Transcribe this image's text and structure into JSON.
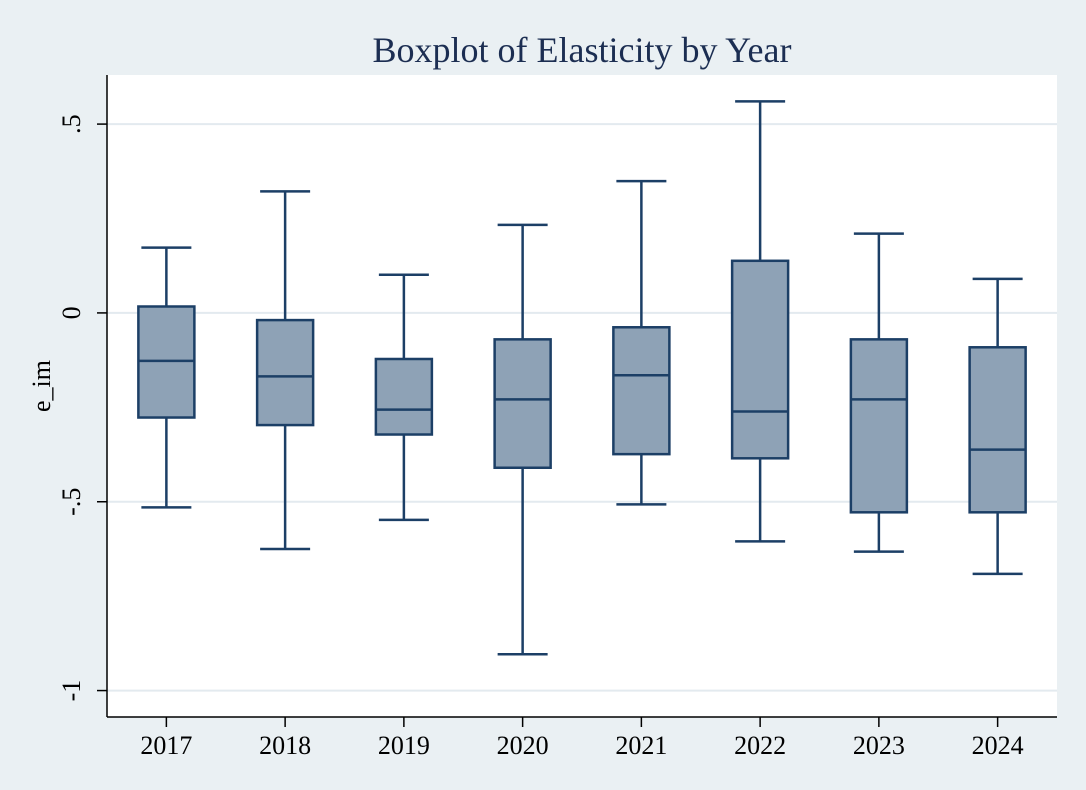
{
  "chart_data": {
    "type": "boxplot",
    "title": "Boxplot of Elasticity by Year",
    "xlabel": "",
    "ylabel": "e_im",
    "ylim": [
      -1.07,
      0.63
    ],
    "yticks": [
      {
        "value": 0.5,
        "label": ".5"
      },
      {
        "value": 0,
        "label": "0"
      },
      {
        "value": -0.5,
        "label": "-.5"
      },
      {
        "value": -1,
        "label": "-1"
      }
    ],
    "grid": true,
    "legend": "none",
    "categories": [
      "2017",
      "2018",
      "2019",
      "2020",
      "2021",
      "2022",
      "2023",
      "2024"
    ],
    "boxes": [
      {
        "category": "2017",
        "min": -0.515,
        "q1": -0.277,
        "median": -0.127,
        "q3": 0.017,
        "max": 0.173
      },
      {
        "category": "2018",
        "min": -0.625,
        "q1": -0.297,
        "median": -0.168,
        "q3": -0.019,
        "max": 0.322
      },
      {
        "category": "2019",
        "min": -0.548,
        "q1": -0.322,
        "median": -0.256,
        "q3": -0.122,
        "max": 0.101
      },
      {
        "category": "2020",
        "min": -0.904,
        "q1": -0.41,
        "median": -0.229,
        "q3": -0.07,
        "max": 0.233
      },
      {
        "category": "2021",
        "min": -0.507,
        "q1": -0.374,
        "median": -0.165,
        "q3": -0.038,
        "max": 0.349
      },
      {
        "category": "2022",
        "min": -0.605,
        "q1": -0.385,
        "median": -0.261,
        "q3": 0.138,
        "max": 0.56
      },
      {
        "category": "2023",
        "min": -0.632,
        "q1": -0.528,
        "median": -0.229,
        "q3": -0.07,
        "max": 0.21
      },
      {
        "category": "2024",
        "min": -0.691,
        "q1": -0.528,
        "median": -0.362,
        "q3": -0.091,
        "max": 0.09
      }
    ],
    "colors": {
      "box_fill": "#8ea2b6",
      "line": "#1c3f66",
      "grid": "#e3eaef",
      "plot_bg": "#ffffff",
      "page_bg": "#eaf0f3"
    }
  }
}
